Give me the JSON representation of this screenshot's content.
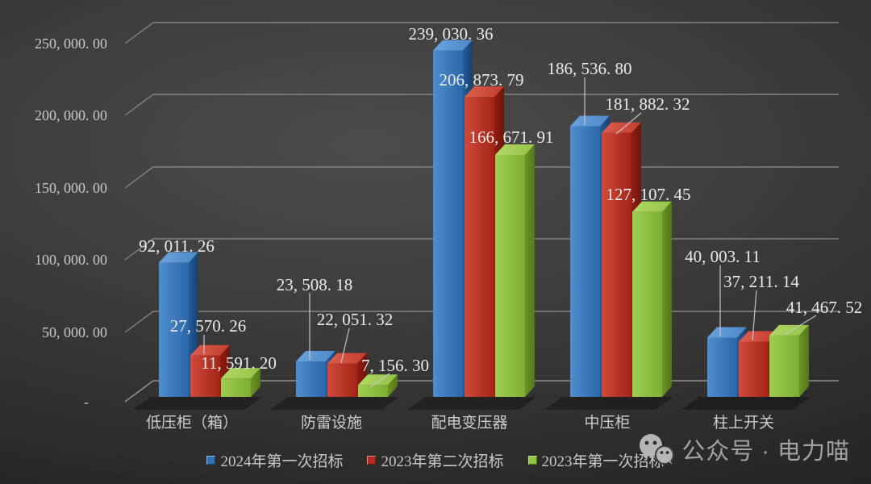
{
  "chart_data": {
    "type": "bar",
    "style": "3d-clustered-column",
    "title": "",
    "categories": [
      "低压柜（箱）",
      "防雷设施",
      "配电变压器",
      "中压柜",
      "柱上开关"
    ],
    "series": [
      {
        "name": "2024年第一次招标",
        "color": "#2e74b5",
        "values": [
          92011.26,
          23508.18,
          239030.36,
          186536.8,
          40003.11
        ]
      },
      {
        "name": "2023年第二次招标",
        "color": "#b52a1e",
        "values": [
          27570.26,
          22051.32,
          206873.79,
          181882.32,
          37211.14
        ]
      },
      {
        "name": "2023年第一次招标",
        "color": "#8cc63f",
        "values": [
          11591.2,
          7156.3,
          166671.91,
          127107.45,
          41467.52
        ]
      }
    ],
    "data_labels_shown": true,
    "y_axis": {
      "min": 0,
      "max": 250000,
      "step": 50000,
      "tick_labels": [
        "-",
        "50,000.00",
        "100,000.00",
        "150,000.00",
        "200,000.00",
        "250,000.00"
      ]
    },
    "grid": true,
    "legend_position": "bottom",
    "background": "dark-gray-gradient",
    "gridline_color": "#8f8f8f",
    "text_color": "#c9c9c9"
  },
  "watermark": {
    "icon": "wechat-icon",
    "text": "公众号 · 电力喵"
  }
}
